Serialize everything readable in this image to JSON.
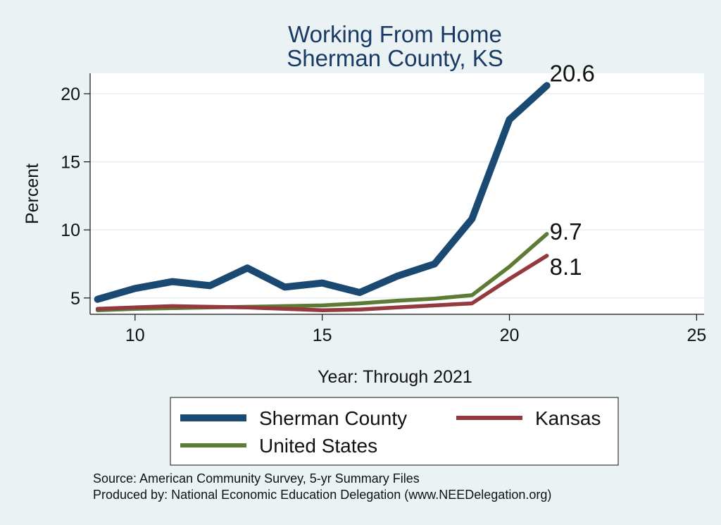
{
  "chart_data": {
    "type": "line",
    "title": [
      "Working From Home",
      "Sherman County, KS"
    ],
    "xlabel": "Year: Through 2021",
    "ylabel": "Percent",
    "xlim": [
      8.8,
      25.2
    ],
    "ylim": [
      3.8,
      21.5
    ],
    "xticks": [
      10,
      15,
      20,
      25
    ],
    "yticks": [
      5,
      10,
      15,
      20
    ],
    "grid": true,
    "series": [
      {
        "name": "Sherman County",
        "color": "#1a4a72",
        "x": [
          9,
          10,
          11,
          12,
          13,
          14,
          15,
          16,
          17,
          18,
          19,
          20,
          21
        ],
        "values": [
          4.9,
          5.7,
          6.2,
          5.9,
          7.2,
          5.8,
          6.1,
          5.4,
          6.6,
          7.5,
          10.8,
          18.1,
          20.6
        ],
        "end_label": "20.6"
      },
      {
        "name": "Kansas",
        "color": "#943a3e",
        "x": [
          9,
          10,
          11,
          12,
          13,
          14,
          15,
          16,
          17,
          18,
          19,
          20,
          21
        ],
        "values": [
          4.2,
          4.3,
          4.4,
          4.35,
          4.3,
          4.2,
          4.1,
          4.15,
          4.3,
          4.45,
          4.6,
          6.4,
          8.1
        ],
        "end_label": "8.1"
      },
      {
        "name": "United States",
        "color": "#5c7c35",
        "x": [
          9,
          10,
          11,
          12,
          13,
          14,
          15,
          16,
          17,
          18,
          19,
          20,
          21
        ],
        "values": [
          4.1,
          4.2,
          4.25,
          4.3,
          4.35,
          4.4,
          4.45,
          4.6,
          4.8,
          4.95,
          5.2,
          7.3,
          9.7
        ],
        "end_label": "9.7"
      }
    ],
    "source_lines": [
      "Source: American Community Survey, 5-yr Summary Files",
      "Produced by: National Economic Education Delegation (www.NEEDelegation.org)"
    ]
  }
}
